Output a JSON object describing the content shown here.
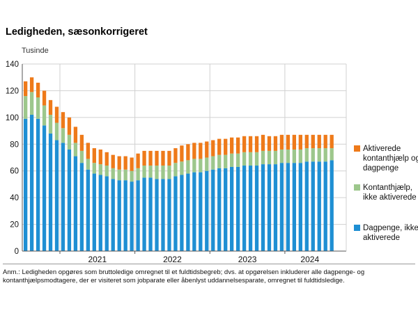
{
  "title": "Ledigheden, sæsonkorrigeret",
  "note": "Anm.: Ledigheden opgøres som bruttoledige omregnet til et fuldtidsbegreb; dvs. at opgørelsen inkluderer alle dagpenge- og kontanthjælpsmodtagere, der er visiteret som jobparate eller åbenlyst uddannelsesparate, omregnet til fuldtidsledige.",
  "colors": {
    "dagpenge": "#1f8fd3",
    "kontanthjaelp": "#9dc78c",
    "aktiverede": "#ee7a1a",
    "grid": "#d0d0d0",
    "axis": "#555555"
  },
  "chart_data": {
    "type": "bar",
    "stacked": true,
    "ylabel": "Tusinde",
    "ylim": [
      0,
      140
    ],
    "yticks": [
      0,
      20,
      40,
      60,
      80,
      100,
      120,
      140
    ],
    "grid": true,
    "legend_position": "right",
    "year_labels": [
      {
        "label": "2021",
        "first_index": 6,
        "last_index": 17
      },
      {
        "label": "2022",
        "first_index": 18,
        "last_index": 29
      },
      {
        "label": "2023",
        "first_index": 30,
        "last_index": 41
      },
      {
        "label": "2024",
        "first_index": 42,
        "last_index": 49
      }
    ],
    "x": [
      "2020-07",
      "2020-08",
      "2020-09",
      "2020-10",
      "2020-11",
      "2020-12",
      "2021-01",
      "2021-02",
      "2021-03",
      "2021-04",
      "2021-05",
      "2021-06",
      "2021-07",
      "2021-08",
      "2021-09",
      "2021-10",
      "2021-11",
      "2021-12",
      "2022-01",
      "2022-02",
      "2022-03",
      "2022-04",
      "2022-05",
      "2022-06",
      "2022-07",
      "2022-08",
      "2022-09",
      "2022-10",
      "2022-11",
      "2022-12",
      "2023-01",
      "2023-02",
      "2023-03",
      "2023-04",
      "2023-05",
      "2023-06",
      "2023-07",
      "2023-08",
      "2023-09",
      "2023-10",
      "2023-11",
      "2023-12",
      "2024-01",
      "2024-02",
      "2024-03",
      "2024-04",
      "2024-05",
      "2024-06",
      "2024-07",
      "2024-08"
    ],
    "series": [
      {
        "name": "Dagpenge, ikke aktiverede",
        "color_key": "dagpenge",
        "values": [
          99,
          102,
          99,
          94,
          88,
          83,
          81,
          76,
          71,
          66,
          61,
          58,
          57,
          56,
          54,
          53,
          53,
          52,
          53,
          55,
          55,
          54,
          54,
          54,
          56,
          57,
          58,
          59,
          59,
          60,
          61,
          62,
          62,
          63,
          63,
          64,
          64,
          64,
          65,
          65,
          65,
          66,
          66,
          66,
          66,
          67,
          67,
          67,
          67,
          68
        ]
      },
      {
        "name": "Kontanthjælp, ikke aktiverede",
        "color_key": "kontanthjaelp",
        "values": [
          17,
          17,
          16,
          15,
          14,
          13,
          11,
          11,
          10,
          9,
          8,
          8,
          8,
          8,
          8,
          8,
          8,
          8,
          9,
          9,
          9,
          10,
          10,
          10,
          10,
          10,
          10,
          10,
          10,
          10,
          10,
          10,
          10,
          10,
          10,
          10,
          10,
          10,
          10,
          10,
          10,
          10,
          10,
          10,
          10,
          10,
          10,
          10,
          10,
          9
        ]
      },
      {
        "name": "Aktiverede kontanthjælp og dagpenge",
        "color_key": "aktiverede",
        "values": [
          11,
          11,
          11,
          11,
          11,
          12,
          12,
          13,
          12,
          12,
          12,
          11,
          11,
          10,
          10,
          10,
          10,
          10,
          11,
          11,
          11,
          11,
          11,
          11,
          11,
          12,
          12,
          12,
          12,
          12,
          12,
          12,
          12,
          12,
          12,
          12,
          12,
          12,
          12,
          11,
          11,
          11,
          11,
          11,
          11,
          10,
          10,
          10,
          10,
          10
        ]
      }
    ]
  },
  "legend": [
    {
      "label": "Aktiverede kontanthjælp og dagpenge",
      "color_key": "aktiverede"
    },
    {
      "label": "Kontanthjælp, ikke aktiverede",
      "color_key": "kontanthjaelp"
    },
    {
      "label": "Dagpenge, ikke aktiverede",
      "color_key": "dagpenge"
    }
  ]
}
